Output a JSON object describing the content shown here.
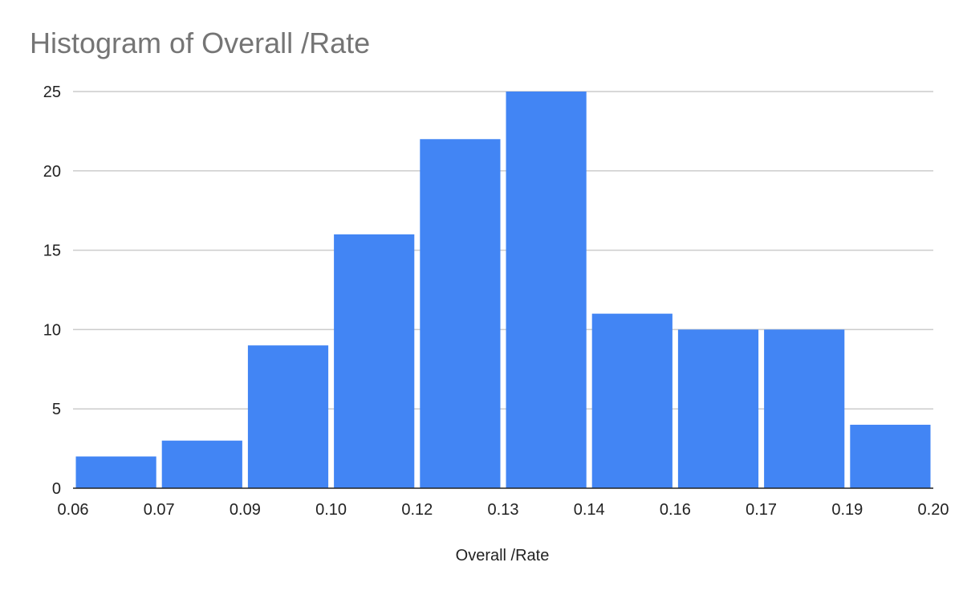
{
  "chart_data": {
    "type": "bar",
    "title": "Histogram of Overall /Rate",
    "xlabel": "Overall /Rate",
    "ylabel": "",
    "x_tick_labels": [
      "0.06",
      "0.07",
      "0.09",
      "0.10",
      "0.12",
      "0.13",
      "0.14",
      "0.16",
      "0.17",
      "0.19",
      "0.20"
    ],
    "y_ticks": [
      0,
      5,
      10,
      15,
      20,
      25
    ],
    "ylim": [
      0,
      25
    ],
    "categories": [
      "0.06–0.07",
      "0.07–0.09",
      "0.09–0.10",
      "0.10–0.12",
      "0.12–0.13",
      "0.13–0.14",
      "0.14–0.16",
      "0.16–0.17",
      "0.17–0.19",
      "0.19–0.20"
    ],
    "values": [
      2,
      3,
      9,
      16,
      22,
      25,
      11,
      10,
      10,
      4
    ],
    "grid": true,
    "legend": "none",
    "bar_color": "#4285f4",
    "grid_color": "#cccccc",
    "baseline_color": "#222222"
  }
}
